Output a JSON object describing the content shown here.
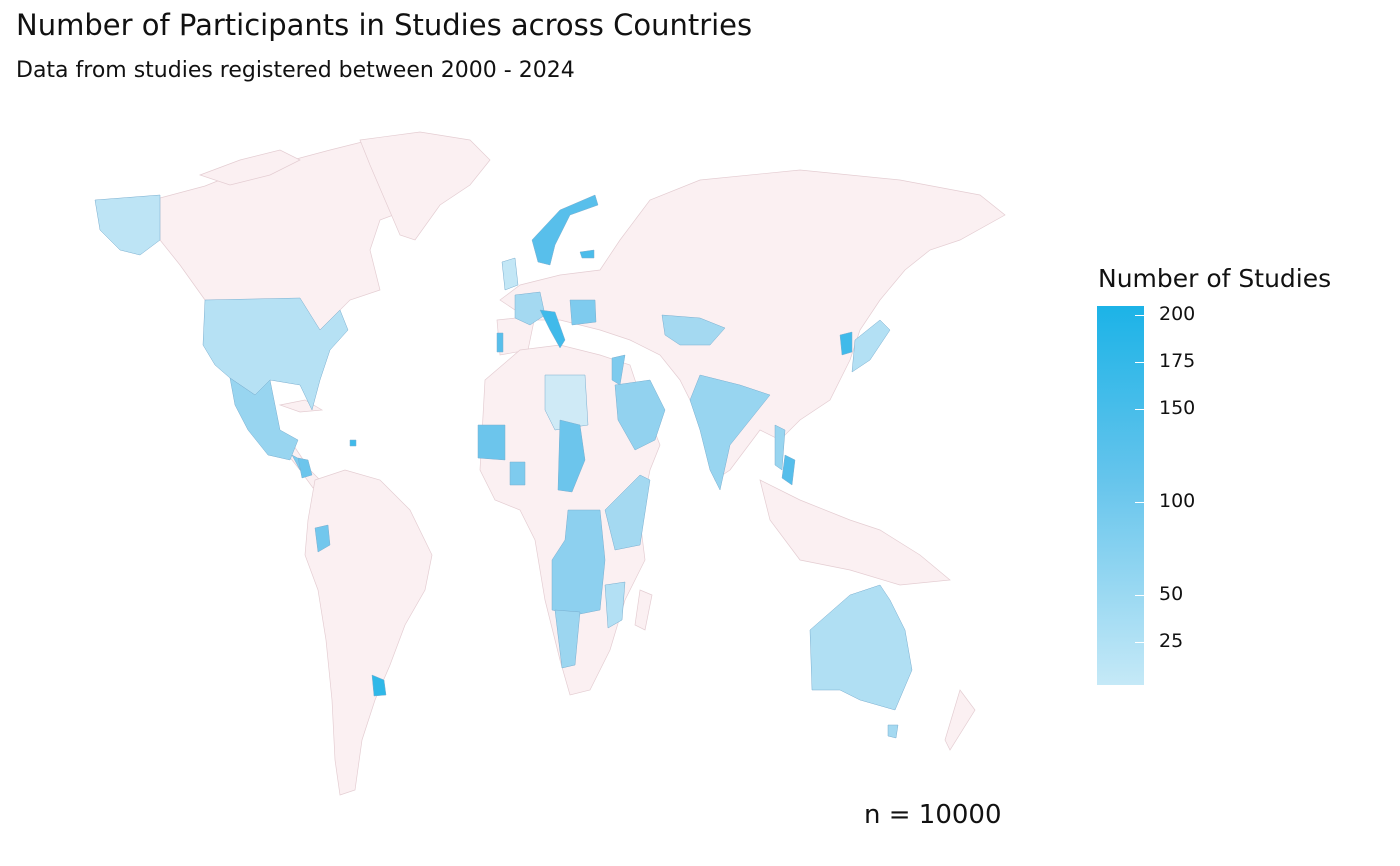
{
  "title": "Number of Participants in Studies across Countries",
  "subtitle": "Data from studies registered between 2000 - 2024",
  "legend": {
    "title": "Number of Studies",
    "min": 0,
    "max": 200,
    "ticks": [
      "200",
      "175",
      "150",
      "100",
      "50",
      "25"
    ],
    "color_low": "#c5e9f7",
    "color_high": "#1cb3e7"
  },
  "note": "n = 10000",
  "colors": {
    "no_data": "#fbf0f2",
    "border": "#e4cdd2"
  },
  "chart_data": {
    "type": "choropleth",
    "scale": "Number of Studies",
    "regions": [
      {
        "name": "United States",
        "value": 60
      },
      {
        "name": "Alaska",
        "value": 50
      },
      {
        "name": "Mexico",
        "value": 70
      },
      {
        "name": "Guatemala",
        "value": 110
      },
      {
        "name": "Nicaragua",
        "value": 125
      },
      {
        "name": "Ecuador",
        "value": 120
      },
      {
        "name": "Uruguay",
        "value": 190
      },
      {
        "name": "Norway",
        "value": 150
      },
      {
        "name": "Finland",
        "value": 140
      },
      {
        "name": "Estonia",
        "value": 160
      },
      {
        "name": "United Kingdom",
        "value": 40
      },
      {
        "name": "France",
        "value": 75
      },
      {
        "name": "Portugal",
        "value": 150
      },
      {
        "name": "Italy",
        "value": 165
      },
      {
        "name": "Croatia",
        "value": 140
      },
      {
        "name": "Romania",
        "value": 120
      },
      {
        "name": "Belgium",
        "value": 100
      },
      {
        "name": "Libya",
        "value": 20
      },
      {
        "name": "Israel",
        "value": 110
      },
      {
        "name": "Saudi Arabia",
        "value": 80
      },
      {
        "name": "India",
        "value": 85
      },
      {
        "name": "Uzbekistan",
        "value": 80
      },
      {
        "name": "Afghanistan",
        "value": 60
      },
      {
        "name": "Bangladesh",
        "value": 110
      },
      {
        "name": "Myanmar",
        "value": 80
      },
      {
        "name": "Vietnam",
        "value": 150
      },
      {
        "name": "South Korea",
        "value": 170
      },
      {
        "name": "Japan",
        "value": 60
      },
      {
        "name": "Mauritania",
        "value": 140
      },
      {
        "name": "Ghana",
        "value": 130
      },
      {
        "name": "Chad",
        "value": 130
      },
      {
        "name": "Central African Republic",
        "value": 30
      },
      {
        "name": "Kenya",
        "value": 75
      },
      {
        "name": "Somalia",
        "value": 60
      },
      {
        "name": "DR Congo",
        "value": 110
      },
      {
        "name": "Angola",
        "value": 95
      },
      {
        "name": "Zambia",
        "value": 110
      },
      {
        "name": "Namibia",
        "value": 85
      },
      {
        "name": "Mozambique",
        "value": 70
      },
      {
        "name": "Australia",
        "value": 55
      },
      {
        "name": "Tasmania",
        "value": 60
      }
    ]
  }
}
